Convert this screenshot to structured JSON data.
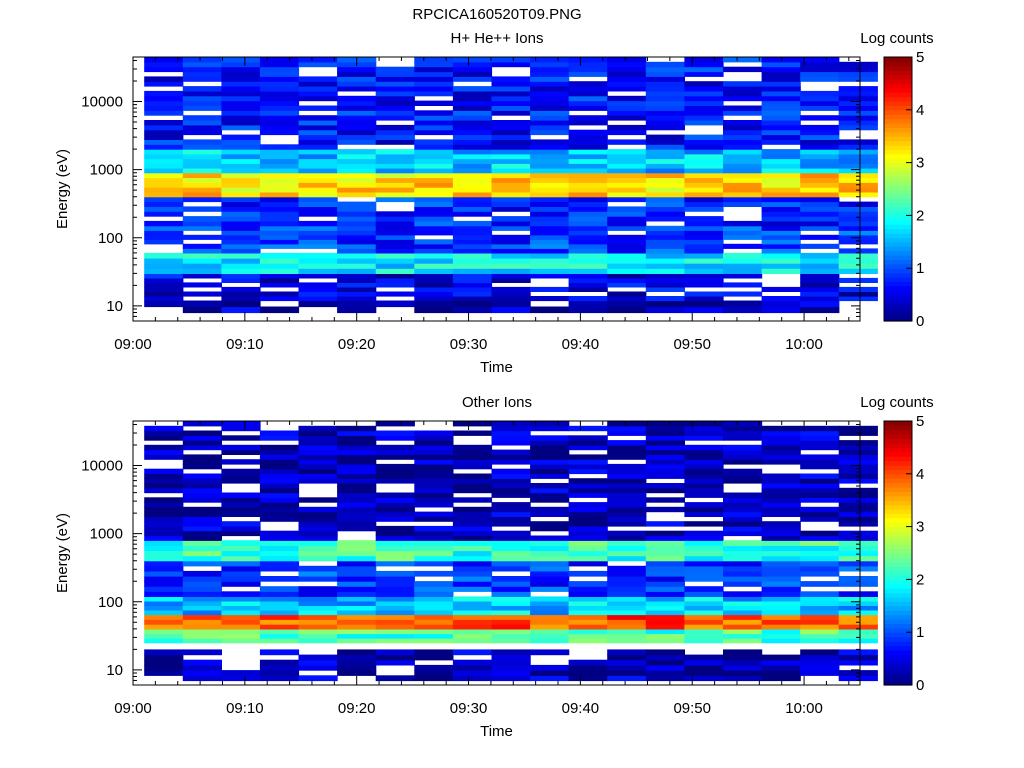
{
  "figure_title": "RPCICA160520T09.PNG",
  "chart_data": [
    {
      "type": "heatmap",
      "title": "H+ He++ Ions",
      "xlabel": "Time",
      "ylabel": "Energy (eV)",
      "colorbar_label": "Log counts",
      "x_ticks": [
        "09:00",
        "09:10",
        "09:20",
        "09:30",
        "09:40",
        "09:50",
        "10:00"
      ],
      "y_ticks": [
        "10",
        "100",
        "1000",
        "10000"
      ],
      "y_scale": "log",
      "ylim": [
        6,
        45000
      ],
      "xlim_minutes": [
        0,
        65
      ],
      "colorbar_ticks": [
        "0",
        "1",
        "2",
        "3",
        "4",
        "5"
      ],
      "zlim": [
        0,
        5
      ],
      "colormap": "jet",
      "time_columns": 19,
      "energy_bands_log_counts": [
        {
          "energy_range_eV": [
            8,
            12
          ],
          "log_counts": 0.3
        },
        {
          "energy_range_eV": [
            12,
            30
          ],
          "log_counts": 0.5
        },
        {
          "energy_range_eV": [
            30,
            60
          ],
          "log_counts": 1.8
        },
        {
          "energy_range_eV": [
            60,
            150
          ],
          "log_counts": 0.9
        },
        {
          "energy_range_eV": [
            150,
            400
          ],
          "log_counts": 0.8
        },
        {
          "energy_range_eV": [
            400,
            900
          ],
          "log_counts": 3.3
        },
        {
          "energy_range_eV": [
            900,
            2000
          ],
          "log_counts": 1.6
        },
        {
          "energy_range_eV": [
            2000,
            45000
          ],
          "log_counts": 0.7
        }
      ]
    },
    {
      "type": "heatmap",
      "title": "Other Ions",
      "xlabel": "Time",
      "ylabel": "Energy (eV)",
      "colorbar_label": "Log counts",
      "x_ticks": [
        "09:00",
        "09:10",
        "09:20",
        "09:30",
        "09:40",
        "09:50",
        "10:00"
      ],
      "y_ticks": [
        "10",
        "100",
        "1000",
        "10000"
      ],
      "y_scale": "log",
      "ylim": [
        6,
        45000
      ],
      "xlim_minutes": [
        0,
        65
      ],
      "colorbar_ticks": [
        "0",
        "1",
        "2",
        "3",
        "4",
        "5"
      ],
      "zlim": [
        0,
        5
      ],
      "colormap": "jet",
      "time_columns": 19,
      "energy_bands_log_counts": [
        {
          "energy_range_eV": [
            7,
            20
          ],
          "log_counts": 0.3
        },
        {
          "energy_range_eV": [
            25,
            40
          ],
          "log_counts": 2.2
        },
        {
          "energy_range_eV": [
            40,
            65
          ],
          "log_counts": 4.0
        },
        {
          "energy_range_eV": [
            65,
            120
          ],
          "log_counts": 1.6
        },
        {
          "energy_range_eV": [
            120,
            400
          ],
          "log_counts": 0.9
        },
        {
          "energy_range_eV": [
            400,
            800
          ],
          "log_counts": 2.1
        },
        {
          "energy_range_eV": [
            800,
            45000
          ],
          "log_counts": 0.3
        }
      ]
    }
  ]
}
